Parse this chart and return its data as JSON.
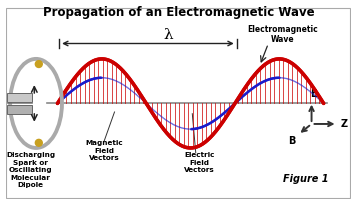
{
  "title": "Propagation of an Electromagnetic Wave",
  "title_fontsize": 8.5,
  "bg_color": "#ffffff",
  "wave_color_E": "#cc0000",
  "wave_color_B": "#1a1acc",
  "axis_color": "#444444",
  "text_color": "#000000",
  "label_magnetic": "Magnetic\nField\nVectors",
  "label_electric": "Electric\nField\nVectors",
  "label_source": "Discharging\nSpark or\nOscillating\nMolecular\nDipole",
  "label_em_wave": "Electromagnetic\nWave",
  "label_figure": "Figure 1",
  "label_lambda": "λ",
  "label_E": "E",
  "label_B": "B",
  "label_Z": "Z",
  "xlim": [
    0,
    10
  ],
  "ylim": [
    -2.8,
    3.0
  ],
  "z_start": 1.5,
  "z_end": 9.2,
  "E_amp": 1.3,
  "B_amp": 0.75,
  "n_cycles": 1.5
}
